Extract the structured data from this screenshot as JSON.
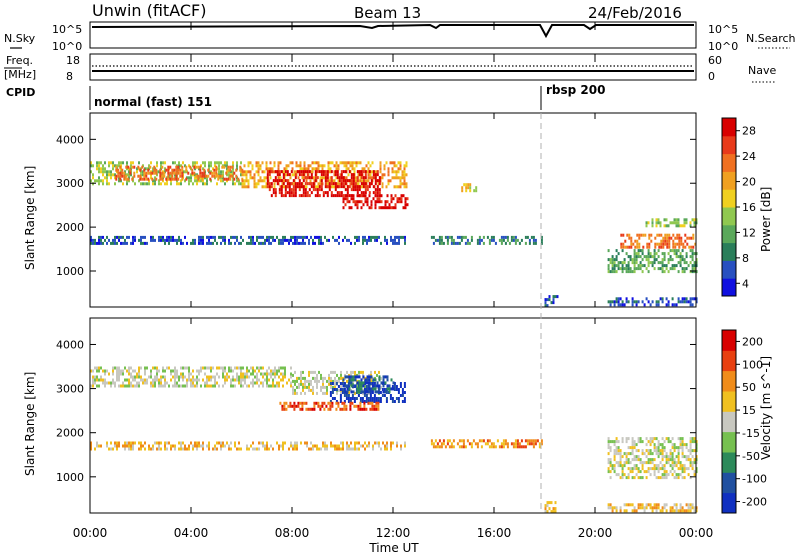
{
  "header": {
    "title": "Unwin (fitACF)",
    "beam": "Beam 13",
    "date": "24/Feb/2016"
  },
  "noise_panel": {
    "left_label": "N.Sky",
    "right_label": "N.Search",
    "left_ticks": [
      "10^5",
      "10^0"
    ],
    "right_ticks": [
      "10^5",
      "10^0"
    ]
  },
  "freq_panel": {
    "label_line1": "Freq.",
    "label_line2": "[MHz]",
    "right_label": "Nave",
    "left_ticks": [
      "18",
      "8"
    ],
    "right_ticks": [
      "60",
      "0"
    ]
  },
  "cpid": {
    "label": "CPID",
    "segments": [
      {
        "text": "normal (fast) 151",
        "start_hour": 0
      },
      {
        "text": "rbsp 200",
        "start_hour": 18.0
      }
    ]
  },
  "time_axis": {
    "label": "Time UT",
    "ticks": [
      "00:00",
      "04:00",
      "08:00",
      "12:00",
      "16:00",
      "20:00",
      "00:00"
    ],
    "start_hour": 0,
    "end_hour": 24
  },
  "range_axis": {
    "label": "Slant Range [km]",
    "ticks": [
      1000,
      2000,
      3000,
      4000
    ],
    "min": 180,
    "max": 4600
  },
  "power_scale": {
    "label": "Power [dB]",
    "ticks": [
      "4",
      "8",
      "12",
      "16",
      "20",
      "24",
      "28"
    ],
    "colors": [
      "#1010e0",
      "#2850c0",
      "#2a7e5a",
      "#5aa85a",
      "#90c850",
      "#f0d020",
      "#f0a020",
      "#f07020",
      "#e83a1a",
      "#d80000"
    ]
  },
  "velocity_scale": {
    "label": "Velocity [m s^-1]",
    "ticks": [
      "200",
      "100",
      "50",
      "15",
      "-15",
      "-50",
      "-100",
      "-200"
    ],
    "colors": [
      "#1030c0",
      "#2050a0",
      "#2c8a5a",
      "#76c050",
      "#c8c8c0",
      "#f0c020",
      "#f08c1a",
      "#e84010",
      "#d80000"
    ]
  },
  "chart_data": {
    "type": "heatmap",
    "title": "Unwin (fitACF)",
    "xlabel": "Time UT",
    "ylabel": "Slant Range [km]",
    "xlim": [
      0,
      24
    ],
    "ylim": [
      180,
      4600
    ],
    "power_regions": [
      {
        "t0": 0.0,
        "t1": 6.0,
        "r0": 3000,
        "r1": 3500,
        "level": 4
      },
      {
        "t0": 1.0,
        "t1": 6.0,
        "r0": 3100,
        "r1": 3400,
        "level": 7
      },
      {
        "t0": 6.0,
        "t1": 12.5,
        "r0": 2900,
        "r1": 3500,
        "level": 6
      },
      {
        "t0": 7.0,
        "t1": 11.5,
        "r0": 2700,
        "r1": 3300,
        "level": 9
      },
      {
        "t0": 10.0,
        "t1": 12.6,
        "r0": 2450,
        "r1": 2750,
        "level": 9
      },
      {
        "t0": 0.0,
        "t1": 12.5,
        "r0": 1650,
        "r1": 1800,
        "level": 1
      },
      {
        "t0": 13.5,
        "t1": 17.9,
        "r0": 1650,
        "r1": 1800,
        "level": 2
      },
      {
        "t0": 14.7,
        "t1": 15.3,
        "r0": 2800,
        "r1": 3000,
        "level": 5
      },
      {
        "t0": 21.0,
        "t1": 24.0,
        "r0": 1550,
        "r1": 1850,
        "level": 7
      },
      {
        "t0": 20.5,
        "t1": 24.0,
        "r0": 1000,
        "r1": 1500,
        "level": 3
      },
      {
        "t0": 22.0,
        "t1": 24.0,
        "r0": 2000,
        "r1": 2200,
        "level": 4
      },
      {
        "t0": 18.0,
        "t1": 18.5,
        "r0": 220,
        "r1": 450,
        "level": 1
      },
      {
        "t0": 20.5,
        "t1": 24.0,
        "r0": 220,
        "r1": 400,
        "level": 1
      }
    ],
    "velocity_regions": [
      {
        "t0": 0.0,
        "t1": 8.0,
        "r0": 3050,
        "r1": 3500,
        "level": 4
      },
      {
        "t0": 8.0,
        "t1": 11.5,
        "r0": 2900,
        "r1": 3400,
        "level": 4
      },
      {
        "t0": 9.5,
        "t1": 12.5,
        "r0": 2700,
        "r1": 3150,
        "level": 0
      },
      {
        "t0": 10.0,
        "t1": 12.0,
        "r0": 2900,
        "r1": 3300,
        "level": 1
      },
      {
        "t0": 7.5,
        "t1": 11.5,
        "r0": 2500,
        "r1": 2700,
        "level": 7
      },
      {
        "t0": 0.0,
        "t1": 12.5,
        "r0": 1650,
        "r1": 1800,
        "level": 5
      },
      {
        "t0": 13.5,
        "t1": 17.9,
        "r0": 1650,
        "r1": 1850,
        "level": 6
      },
      {
        "t0": 20.5,
        "t1": 24.0,
        "r0": 1000,
        "r1": 1900,
        "level": 4
      },
      {
        "t0": 18.0,
        "t1": 18.4,
        "r0": 220,
        "r1": 450,
        "level": 5
      },
      {
        "t0": 20.5,
        "t1": 24.0,
        "r0": 220,
        "r1": 400,
        "level": 5
      }
    ]
  }
}
